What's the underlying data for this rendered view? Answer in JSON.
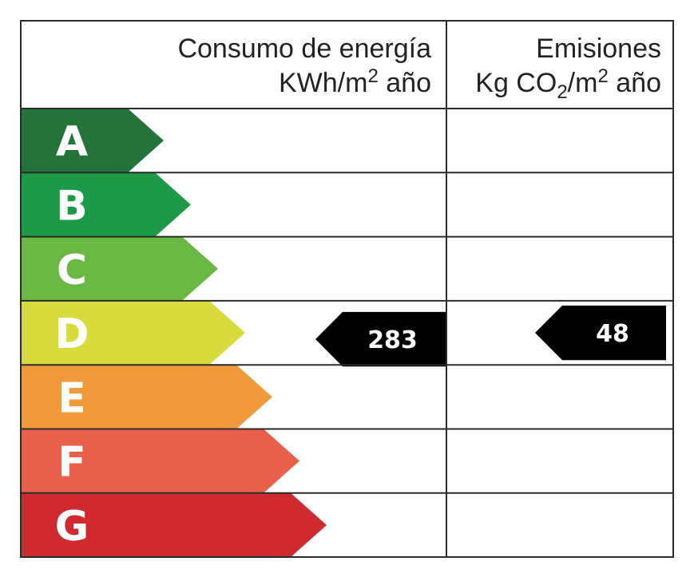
{
  "header": {
    "consumo_title": "Consumo de energía",
    "consumo_unit": "KWh/m",
    "consumo_unit_sup": "2",
    "consumo_unit_tail": " año",
    "emisiones_title": "Emisiones",
    "emisiones_unit_a": "Kg CO",
    "emisiones_unit_sub": "2",
    "emisiones_unit_b": "/m",
    "emisiones_unit_sup": "2",
    "emisiones_unit_tail": " año"
  },
  "classes": [
    {
      "letter": "A",
      "color": "#23733a"
    },
    {
      "letter": "B",
      "color": "#1d9a48"
    },
    {
      "letter": "C",
      "color": "#6bb744"
    },
    {
      "letter": "D",
      "color": "#d6dc3b"
    },
    {
      "letter": "E",
      "color": "#f09a3c"
    },
    {
      "letter": "F",
      "color": "#e8604c"
    },
    {
      "letter": "G",
      "color": "#cf2a30"
    }
  ],
  "consumo": {
    "value": "283",
    "class": "D"
  },
  "emisiones": {
    "value": "48",
    "class": "D"
  },
  "marker_color": "#000000"
}
